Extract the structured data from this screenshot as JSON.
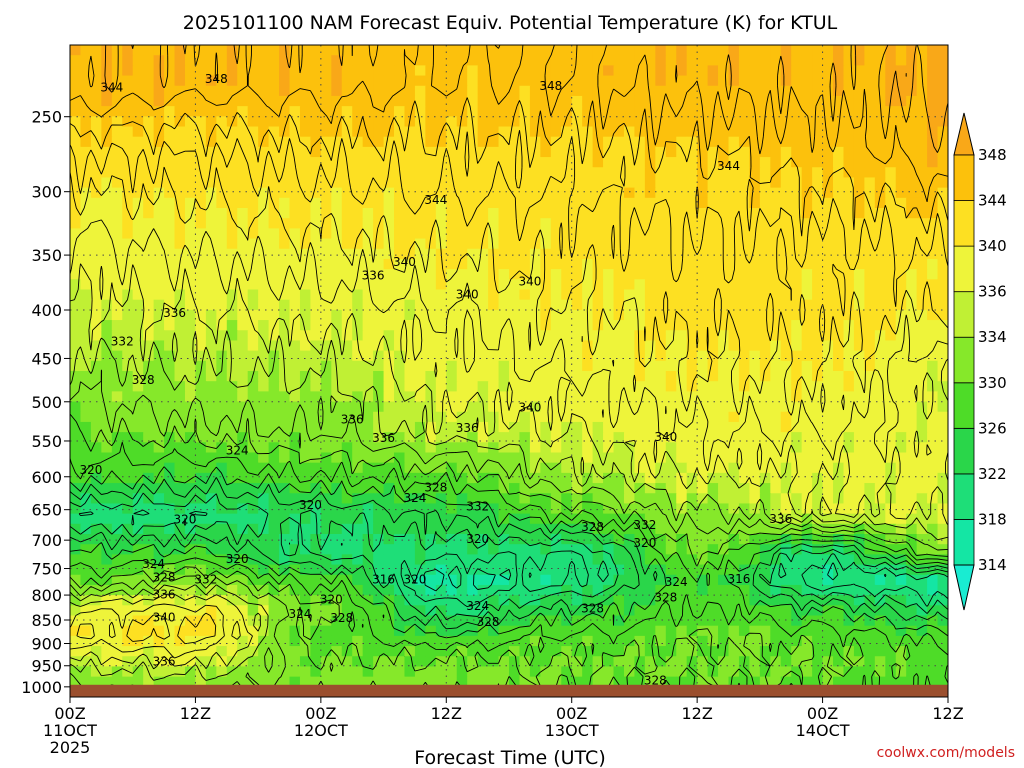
{
  "chart_data": {
    "type": "heatmap",
    "title": "2025101100 NAM Forecast Equiv. Potential Temperature (K) for KTUL",
    "xlabel": "Forecast Time (UTC)",
    "ylabel": "",
    "credit": "coolwx.com/models",
    "y_scale": "log",
    "ylim": [
      1025,
      210
    ],
    "xlim": [
      0,
      84
    ],
    "y_ticks": [
      250,
      300,
      350,
      400,
      450,
      500,
      550,
      600,
      650,
      700,
      750,
      800,
      850,
      900,
      950,
      1000
    ],
    "x_ticks": [
      {
        "x": 0,
        "label": "00Z",
        "date": "11OCT",
        "year": "2025"
      },
      {
        "x": 12,
        "label": "12Z",
        "date": "",
        "year": ""
      },
      {
        "x": 24,
        "label": "00Z",
        "date": "12OCT",
        "year": ""
      },
      {
        "x": 36,
        "label": "12Z",
        "date": "",
        "year": ""
      },
      {
        "x": 48,
        "label": "00Z",
        "date": "13OCT",
        "year": ""
      },
      {
        "x": 60,
        "label": "12Z",
        "date": "",
        "year": ""
      },
      {
        "x": 72,
        "label": "00Z",
        "date": "14OCT",
        "year": ""
      },
      {
        "x": 84,
        "label": "12Z",
        "date": "",
        "year": ""
      }
    ],
    "grid": true,
    "surface_pressure": 995,
    "surface_color": "#9b4f2e",
    "colorbar": {
      "levels": [
        314,
        318,
        322,
        326,
        330,
        334,
        336,
        340,
        344,
        348
      ],
      "colors": [
        "#19ecd2",
        "#14e6a4",
        "#1ede78",
        "#2ad64a",
        "#4edc28",
        "#86e82a",
        "#c0f034",
        "#eef43a",
        "#fde022",
        "#fcc10c",
        "#f9a818"
      ]
    },
    "x_times": [
      0,
      12,
      24,
      36,
      48,
      60,
      72,
      84
    ],
    "profile_pressures": [
      230,
      275,
      330,
      400,
      470,
      540,
      600,
      660,
      720,
      770,
      830,
      880,
      930,
      970,
      1000
    ],
    "profiles": [
      [
        348,
        342,
        338,
        336,
        333,
        330,
        327,
        320,
        326,
        329,
        338,
        340,
        336,
        333,
        332
      ],
      [
        347,
        342,
        339,
        336,
        334,
        331,
        326,
        320,
        326,
        332,
        339,
        341,
        337,
        334,
        333
      ],
      [
        347,
        343,
        340,
        337,
        334,
        332,
        328,
        322,
        321,
        327,
        331,
        329,
        330,
        331,
        331
      ],
      [
        346,
        343,
        341,
        338,
        337,
        335,
        329,
        324,
        321,
        317,
        321,
        326,
        330,
        331,
        331
      ],
      [
        346,
        343,
        341,
        340,
        338,
        336,
        334,
        328,
        320,
        319,
        325,
        328,
        330,
        330,
        330
      ],
      [
        347,
        344,
        342,
        341,
        340,
        338,
        336,
        333,
        330,
        327,
        328,
        330,
        330,
        330,
        330
      ],
      [
        347,
        345,
        342,
        341,
        340,
        338,
        336,
        336,
        321,
        318,
        326,
        329,
        330,
        330,
        329
      ],
      [
        349,
        347,
        343,
        340,
        336,
        337,
        337,
        336,
        332,
        318,
        322,
        327,
        329,
        329,
        329
      ]
    ],
    "contour_labels": [
      {
        "text": "348",
        "x": 14,
        "p": 228
      },
      {
        "text": "348",
        "x": 46,
        "p": 232
      },
      {
        "text": "344",
        "x": 4,
        "p": 233
      },
      {
        "text": "344",
        "x": 63,
        "p": 282
      },
      {
        "text": "344",
        "x": 35,
        "p": 306
      },
      {
        "text": "340",
        "x": 32,
        "p": 356
      },
      {
        "text": "336",
        "x": 29,
        "p": 368
      },
      {
        "text": "340",
        "x": 38,
        "p": 385
      },
      {
        "text": "340",
        "x": 44,
        "p": 373
      },
      {
        "text": "336",
        "x": 10,
        "p": 403
      },
      {
        "text": "332",
        "x": 5,
        "p": 432
      },
      {
        "text": "328",
        "x": 7,
        "p": 474
      },
      {
        "text": "336",
        "x": 27,
        "p": 522
      },
      {
        "text": "340",
        "x": 44,
        "p": 507
      },
      {
        "text": "336",
        "x": 30,
        "p": 546
      },
      {
        "text": "336",
        "x": 38,
        "p": 533
      },
      {
        "text": "340",
        "x": 57,
        "p": 545
      },
      {
        "text": "324",
        "x": 16,
        "p": 563
      },
      {
        "text": "320",
        "x": 2,
        "p": 590
      },
      {
        "text": "328",
        "x": 35,
        "p": 616
      },
      {
        "text": "324",
        "x": 33,
        "p": 632
      },
      {
        "text": "320",
        "x": 23,
        "p": 643
      },
      {
        "text": "332",
        "x": 39,
        "p": 645
      },
      {
        "text": "336",
        "x": 68,
        "p": 665
      },
      {
        "text": "320",
        "x": 11,
        "p": 666
      },
      {
        "text": "332",
        "x": 55,
        "p": 675
      },
      {
        "text": "328",
        "x": 50,
        "p": 678
      },
      {
        "text": "320",
        "x": 39,
        "p": 698
      },
      {
        "text": "320",
        "x": 55,
        "p": 705
      },
      {
        "text": "320",
        "x": 16,
        "p": 733
      },
      {
        "text": "324",
        "x": 8,
        "p": 742
      },
      {
        "text": "328",
        "x": 9,
        "p": 767
      },
      {
        "text": "332",
        "x": 13,
        "p": 770
      },
      {
        "text": "316",
        "x": 30,
        "p": 770
      },
      {
        "text": "320",
        "x": 33,
        "p": 770
      },
      {
        "text": "324",
        "x": 58,
        "p": 775
      },
      {
        "text": "316",
        "x": 64,
        "p": 769
      },
      {
        "text": "336",
        "x": 9,
        "p": 799
      },
      {
        "text": "320",
        "x": 25,
        "p": 809
      },
      {
        "text": "324",
        "x": 39,
        "p": 822
      },
      {
        "text": "328",
        "x": 50,
        "p": 827
      },
      {
        "text": "328",
        "x": 57,
        "p": 805
      },
      {
        "text": "324",
        "x": 22,
        "p": 838
      },
      {
        "text": "328",
        "x": 26,
        "p": 846
      },
      {
        "text": "328",
        "x": 40,
        "p": 854
      },
      {
        "text": "340",
        "x": 9,
        "p": 845
      },
      {
        "text": "336",
        "x": 9,
        "p": 940
      },
      {
        "text": "328",
        "x": 56,
        "p": 985
      }
    ]
  }
}
